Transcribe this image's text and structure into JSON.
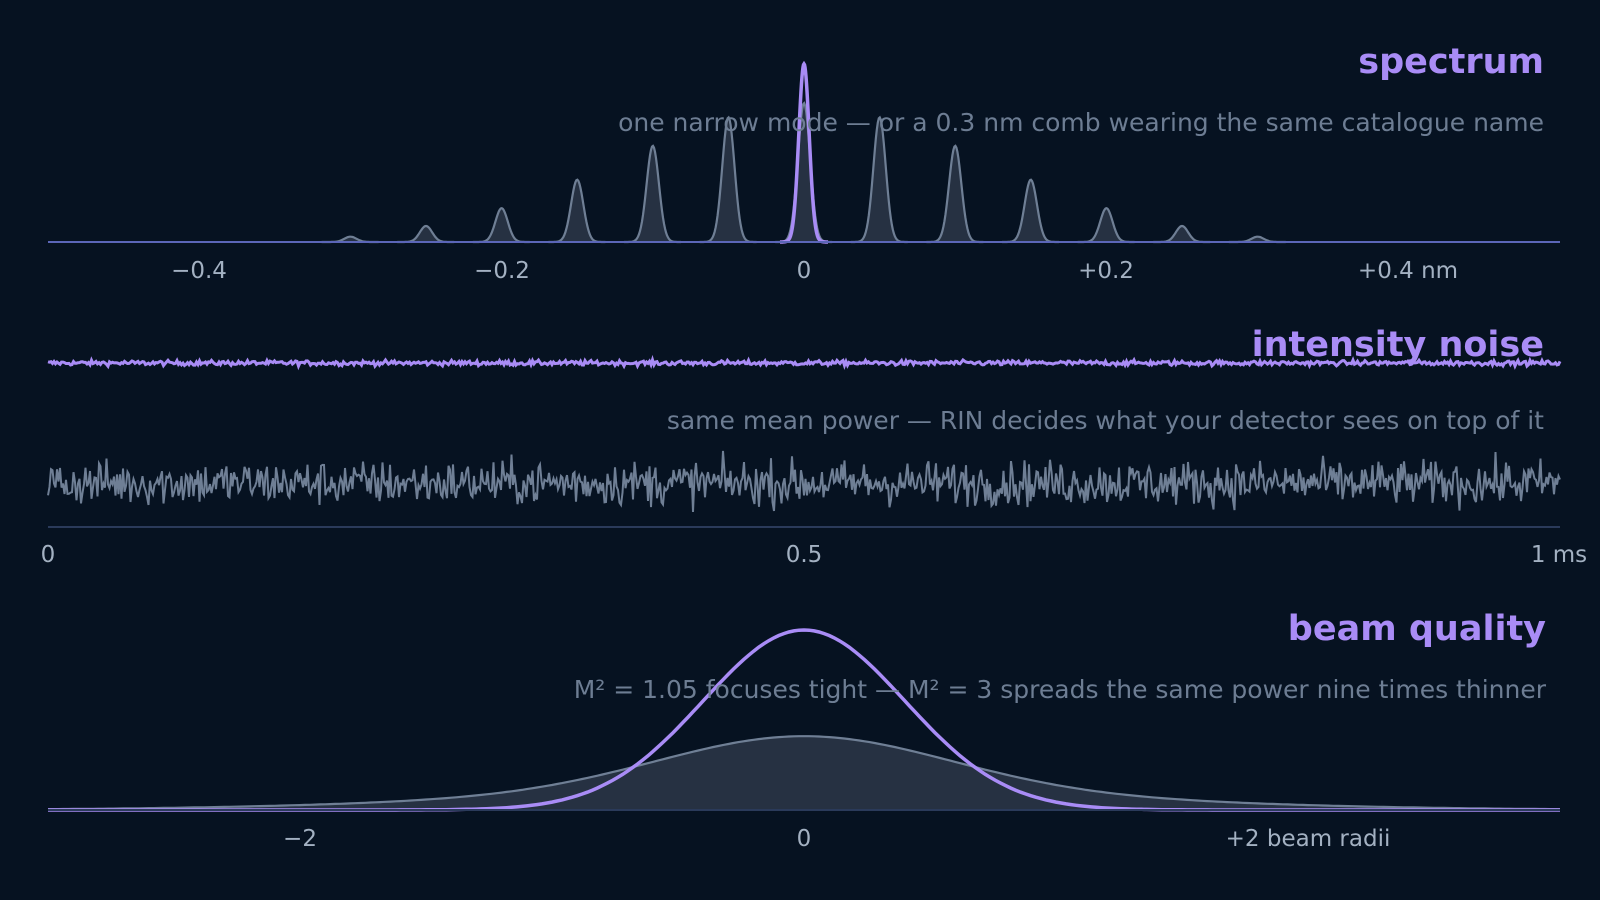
{
  "chart_data": [
    {
      "id": "spectrum",
      "type": "area",
      "title": "spectrum",
      "subtitle": "one narrow mode — or a 0.3 nm comb wearing the same catalogue name",
      "xlim": [
        -0.5,
        0.5
      ],
      "xticks": [
        {
          "value": -0.4,
          "label": "−0.4"
        },
        {
          "value": -0.2,
          "label": "−0.2"
        },
        {
          "value": 0,
          "label": "0"
        },
        {
          "value": 0.2,
          "label": "+0.2"
        },
        {
          "value": 0.4,
          "label": "+0.4 nm"
        }
      ],
      "series": [
        {
          "kind": "comb",
          "color": "#6f7f95",
          "mode_spacing": 0.05,
          "peaks": [
            {
              "x": -0.3,
              "y": 0.03
            },
            {
              "x": -0.25,
              "y": 0.09
            },
            {
              "x": -0.2,
              "y": 0.19
            },
            {
              "x": -0.15,
              "y": 0.35
            },
            {
              "x": -0.1,
              "y": 0.54
            },
            {
              "x": -0.05,
              "y": 0.7
            },
            {
              "x": 0.0,
              "y": 0.78
            },
            {
              "x": 0.05,
              "y": 0.7
            },
            {
              "x": 0.1,
              "y": 0.54
            },
            {
              "x": 0.15,
              "y": 0.35
            },
            {
              "x": 0.2,
              "y": 0.19
            },
            {
              "x": 0.25,
              "y": 0.09
            },
            {
              "x": 0.3,
              "y": 0.03
            }
          ]
        },
        {
          "kind": "single-mode",
          "color": "#a98cf6",
          "peaks": [
            {
              "x": 0.0,
              "y": 1.0
            }
          ]
        }
      ]
    },
    {
      "id": "intensity-noise",
      "type": "line",
      "title": "intensity noise",
      "subtitle": "same mean power — RIN decides what your detector sees on top of it",
      "xlim": [
        0,
        1
      ],
      "xticks": [
        {
          "value": 0,
          "label": "0"
        },
        {
          "value": 0.5,
          "label": "0.5"
        },
        {
          "value": 1,
          "label": "1 ms"
        }
      ],
      "series": [
        {
          "kind": "low-rin",
          "color": "#a98cf6",
          "mean": 0.82,
          "noise_amplitude": 0.006
        },
        {
          "kind": "high-rin",
          "color": "#6f7f95",
          "mean": 0.22,
          "noise_amplitude": 0.055
        }
      ]
    },
    {
      "id": "beam-quality",
      "type": "area",
      "title": "beam quality",
      "subtitle": "M² = 1.05 focuses tight — M² = 3 spreads the same power nine times thinner",
      "xlim": [
        -3,
        3
      ],
      "xticks": [
        {
          "value": -2,
          "label": "−2"
        },
        {
          "value": 0,
          "label": "0"
        },
        {
          "value": 2,
          "label": "+2 beam radii"
        }
      ],
      "series": [
        {
          "kind": "multimode",
          "color": "#6f7f95",
          "peak": 0.41
        },
        {
          "kind": "gaussian",
          "color": "#a98cf6",
          "peak": 1.0
        }
      ]
    }
  ]
}
